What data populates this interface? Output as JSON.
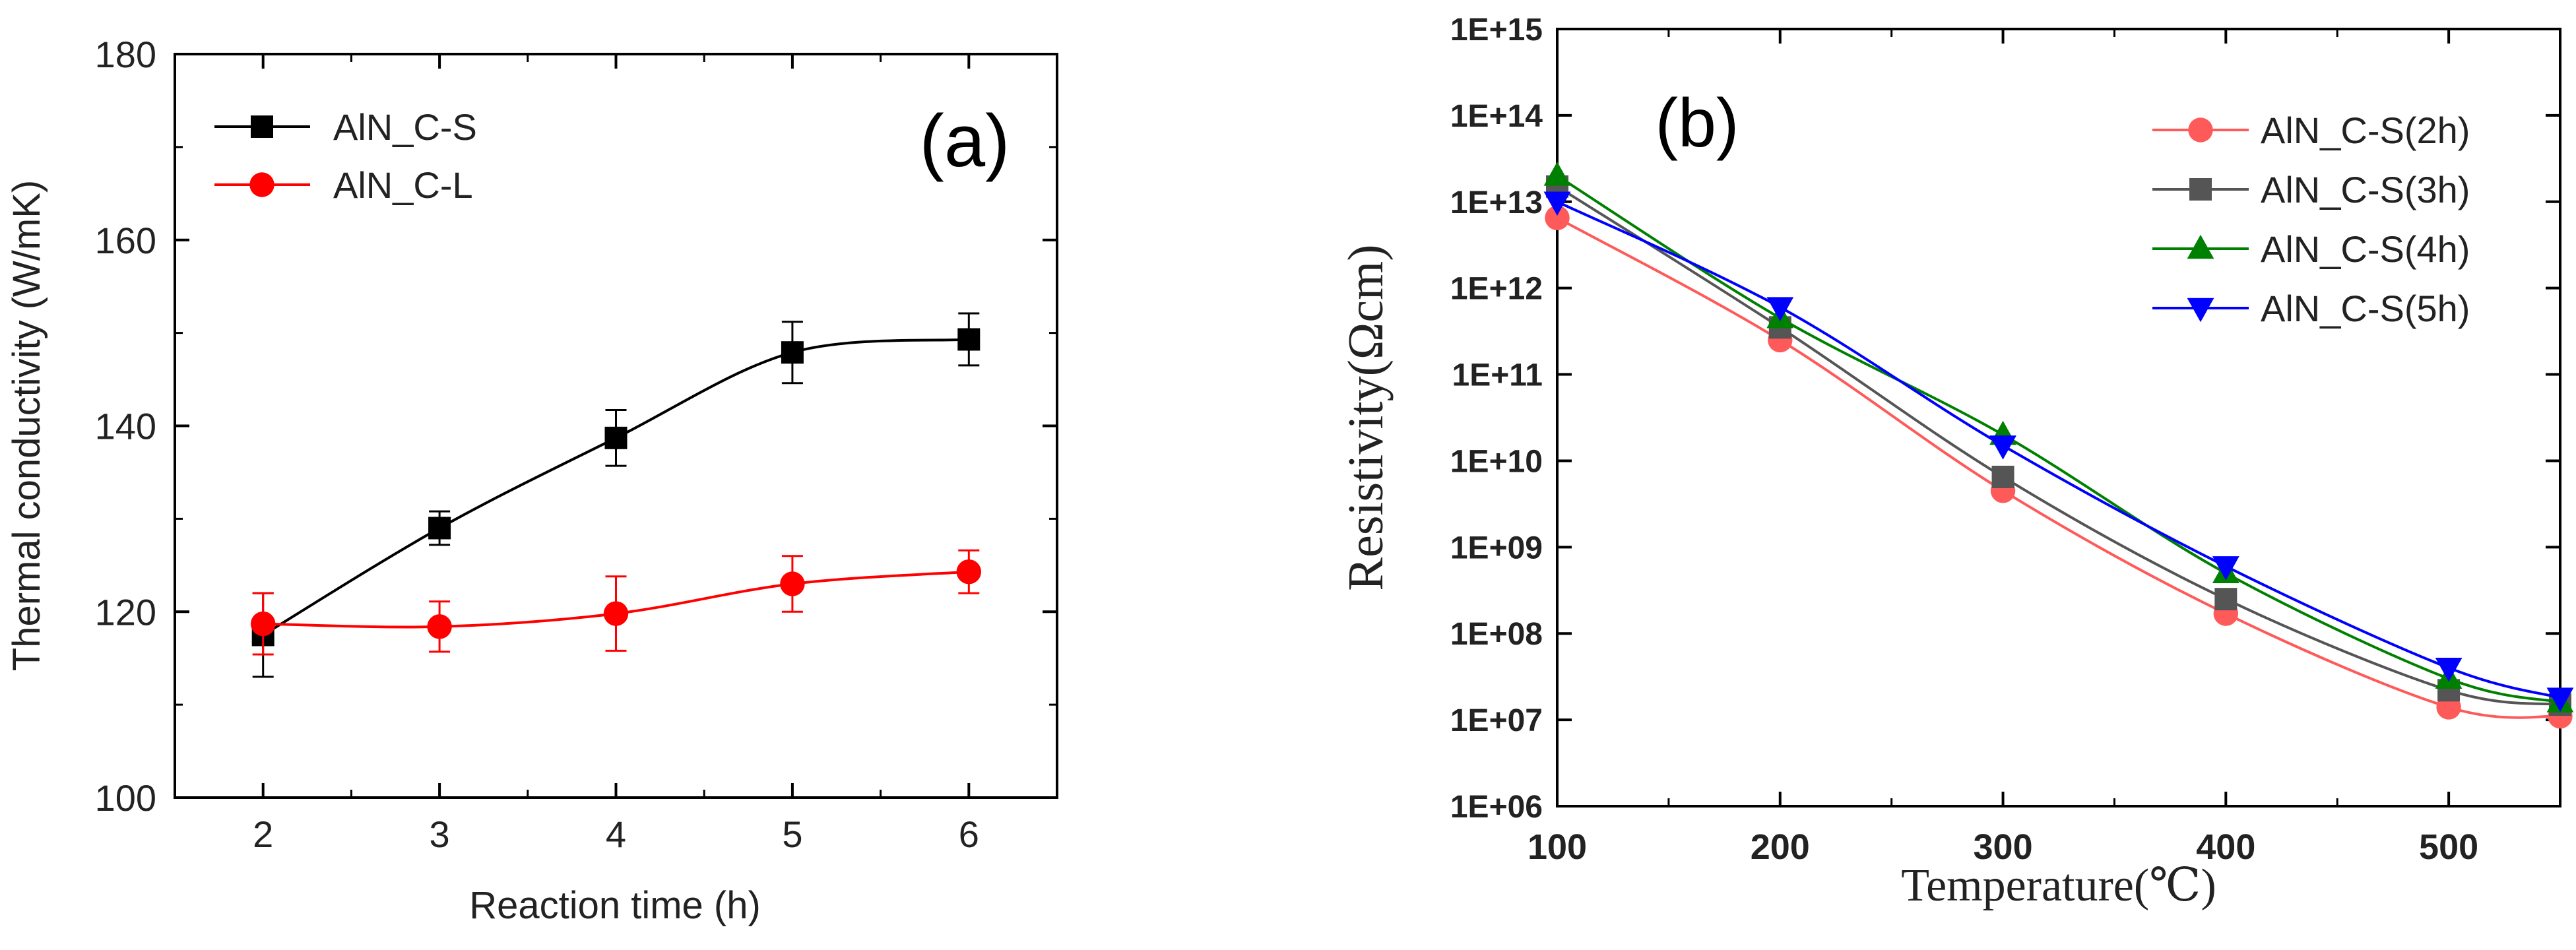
{
  "chart_data": [
    {
      "panel_label": "(a)",
      "type": "line",
      "title": "",
      "xlabel": "Reaction time (h)",
      "ylabel": "Thermal conductivity (W/mK)",
      "xlim": [
        1.5,
        6.5
      ],
      "ylim": [
        100,
        180
      ],
      "xticks": [
        2,
        3,
        4,
        5,
        6
      ],
      "yticks": [
        100,
        120,
        140,
        160,
        180
      ],
      "tick_labels_x": [
        "2",
        "3",
        "4",
        "5",
        "6"
      ],
      "tick_labels_y": [
        "100",
        "120",
        "140",
        "160",
        "180"
      ],
      "legend_position": "top-left",
      "grid": false,
      "series": [
        {
          "name": "AlN_C-S",
          "color": "#000000",
          "marker": "square",
          "x": [
            2,
            3,
            4,
            5,
            6
          ],
          "y": [
            117.5,
            129,
            138.7,
            147.9,
            149.3
          ],
          "yerr": [
            4.5,
            1.8,
            3,
            3.3,
            2.8
          ]
        },
        {
          "name": "AlN_C-L",
          "color": "#ff0000",
          "marker": "circle",
          "x": [
            2,
            3,
            4,
            5,
            6
          ],
          "y": [
            118.7,
            118.4,
            119.8,
            123,
            124.3
          ],
          "yerr": [
            3.3,
            2.7,
            4,
            3,
            2.3
          ]
        }
      ]
    },
    {
      "panel_label": "(b)",
      "type": "line",
      "title": "",
      "xlabel": "Temperature(℃)",
      "ylabel": "Resistivity(Ωcm)",
      "xscale": "linear",
      "yscale": "log",
      "xlim": [
        100,
        550
      ],
      "ylim_exponent": [
        6,
        15
      ],
      "xticks": [
        100,
        200,
        300,
        400,
        500
      ],
      "tick_labels_x": [
        "100",
        "200",
        "300",
        "400",
        "500"
      ],
      "tick_labels_y": [
        "1E+06",
        "1E+07",
        "1E+08",
        "1E+09",
        "1E+10",
        "1E+11",
        "1E+12",
        "1E+13",
        "1E+14",
        "1E+15"
      ],
      "legend_position": "top-right",
      "grid": false,
      "series": [
        {
          "name": "AlN_C-S(2h)",
          "color": "#ff5a5a",
          "marker": "circle",
          "x": [
            100,
            200,
            300,
            400,
            500,
            550
          ],
          "y": [
            6500000000000.0,
            250000000000.0,
            4500000000.0,
            170000000.0,
            14000000.0,
            11000000.0
          ]
        },
        {
          "name": "AlN_C-S(3h)",
          "color": "#555555",
          "marker": "square",
          "x": [
            100,
            200,
            300,
            400,
            500,
            550
          ],
          "y": [
            15000000000000.0,
            350000000000.0,
            6500000000.0,
            250000000.0,
            22000000.0,
            15000000.0
          ]
        },
        {
          "name": "AlN_C-S(4h)",
          "color": "#008000",
          "marker": "triangle-up",
          "x": [
            100,
            200,
            300,
            400,
            500,
            550
          ],
          "y": [
            20000000000000.0,
            450000000000.0,
            20000000000.0,
            500000000.0,
            30000000.0,
            16000000.0
          ]
        },
        {
          "name": "AlN_C-S(5h)",
          "color": "#0000ff",
          "marker": "triangle-down",
          "x": [
            100,
            200,
            300,
            400,
            500,
            550
          ],
          "y": [
            10000000000000.0,
            600000000000.0,
            15000000000.0,
            600000000.0,
            40000000.0,
            18000000.0
          ]
        }
      ]
    }
  ]
}
